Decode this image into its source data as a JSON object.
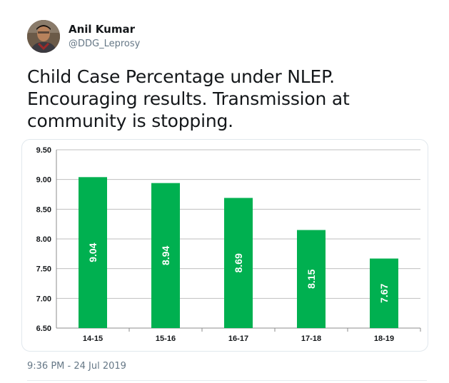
{
  "tweet": {
    "display_name": "Anil Kumar",
    "handle": "@DDG_Leprosy",
    "text_lines": [
      "Child Case Percentage under NLEP.",
      "Encouraging results. Transmission at",
      "community is stopping."
    ],
    "timestamp": "9:36 PM - 24 Jul 2019"
  },
  "colors": {
    "bar": "#00b050",
    "bar_label": "#ffffff",
    "muted_text": "#657786"
  },
  "chart_data": {
    "type": "bar",
    "categories": [
      "14-15",
      "15-16",
      "16-17",
      "17-18",
      "18-19"
    ],
    "values": [
      9.04,
      8.94,
      8.69,
      8.15,
      7.67
    ],
    "data_labels": [
      "9.04",
      "8.94",
      "8.69",
      "8.15",
      "7.67"
    ],
    "y_ticks": [
      "9.50",
      "9.00",
      "8.50",
      "8.00",
      "7.50",
      "7.00",
      "6.50"
    ],
    "ylim": [
      6.5,
      9.5
    ],
    "title": "",
    "xlabel": "",
    "ylabel": "",
    "grid": true
  }
}
